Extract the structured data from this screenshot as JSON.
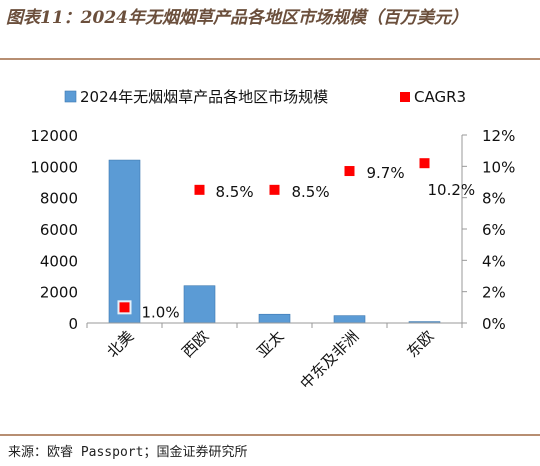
{
  "header": {
    "title": "图表11：2024年无烟烟草产品各地区市场规模（百万美元）"
  },
  "footer": {
    "source": "来源：欧睿 Passport；国金证券研究所"
  },
  "chart_data": {
    "type": "bar",
    "categories": [
      "北美",
      "西欧",
      "亚太",
      "中东及非洲",
      "东欧"
    ],
    "series": [
      {
        "name": "2024年无烟烟草产品各地区市场规模",
        "kind": "bar",
        "axis": "left",
        "color": "#5b9bd5",
        "values": [
          10400,
          2380,
          560,
          470,
          90
        ]
      },
      {
        "name": "CAGR3",
        "kind": "marker",
        "axis": "right",
        "color": "#ff0000",
        "values": [
          1.0,
          8.5,
          8.5,
          9.7,
          10.2
        ],
        "labels": [
          "1.0%",
          "8.5%",
          "8.5%",
          "9.7%",
          "10.2%"
        ]
      }
    ],
    "y_left": {
      "min": 0,
      "max": 12000,
      "ticks": [
        0,
        2000,
        4000,
        6000,
        8000,
        10000,
        12000
      ]
    },
    "y_right": {
      "min": 0,
      "max": 12,
      "ticks": [
        "0%",
        "2%",
        "4%",
        "6%",
        "8%",
        "10%",
        "12%"
      ]
    },
    "legend_position": "top",
    "grid": false
  }
}
